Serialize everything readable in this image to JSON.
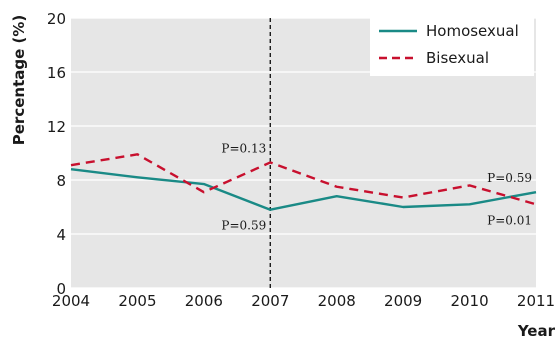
{
  "chart_data": {
    "type": "line",
    "x": [
      2004,
      2005,
      2006,
      2007,
      2008,
      2009,
      2010,
      2011
    ],
    "series": [
      {
        "name": "Homosexual",
        "values": [
          8.8,
          8.2,
          7.7,
          5.8,
          6.8,
          6.0,
          6.2,
          7.1
        ],
        "color": "#1a8a86",
        "style": "solid"
      },
      {
        "name": "Bisexual",
        "values": [
          9.1,
          9.9,
          7.1,
          9.3,
          7.5,
          6.7,
          7.6,
          6.2
        ],
        "color": "#c8102e",
        "style": "dashed"
      }
    ],
    "xlabel": "Year",
    "ylabel": "Percentage (%)",
    "xlim": [
      2004,
      2011
    ],
    "ylim": [
      0,
      20
    ],
    "yticks": [
      0,
      4,
      8,
      12,
      16,
      20
    ],
    "xticks": [
      2004,
      2005,
      2006,
      2007,
      2008,
      2009,
      2010,
      2011
    ],
    "background": "#e6e6e6",
    "grid": true,
    "legend": "top-right",
    "vline_x": 2007,
    "annotations": [
      {
        "text": "P=0.13",
        "x": 2007,
        "y": 9.3,
        "anchor": "above-left"
      },
      {
        "text": "P=0.59",
        "x": 2007,
        "y": 5.8,
        "anchor": "below-left"
      },
      {
        "text": "P=0.59",
        "x": 2011,
        "y": 7.1,
        "anchor": "above-left"
      },
      {
        "text": "P=0.01",
        "x": 2011,
        "y": 6.2,
        "anchor": "below-left"
      }
    ]
  }
}
